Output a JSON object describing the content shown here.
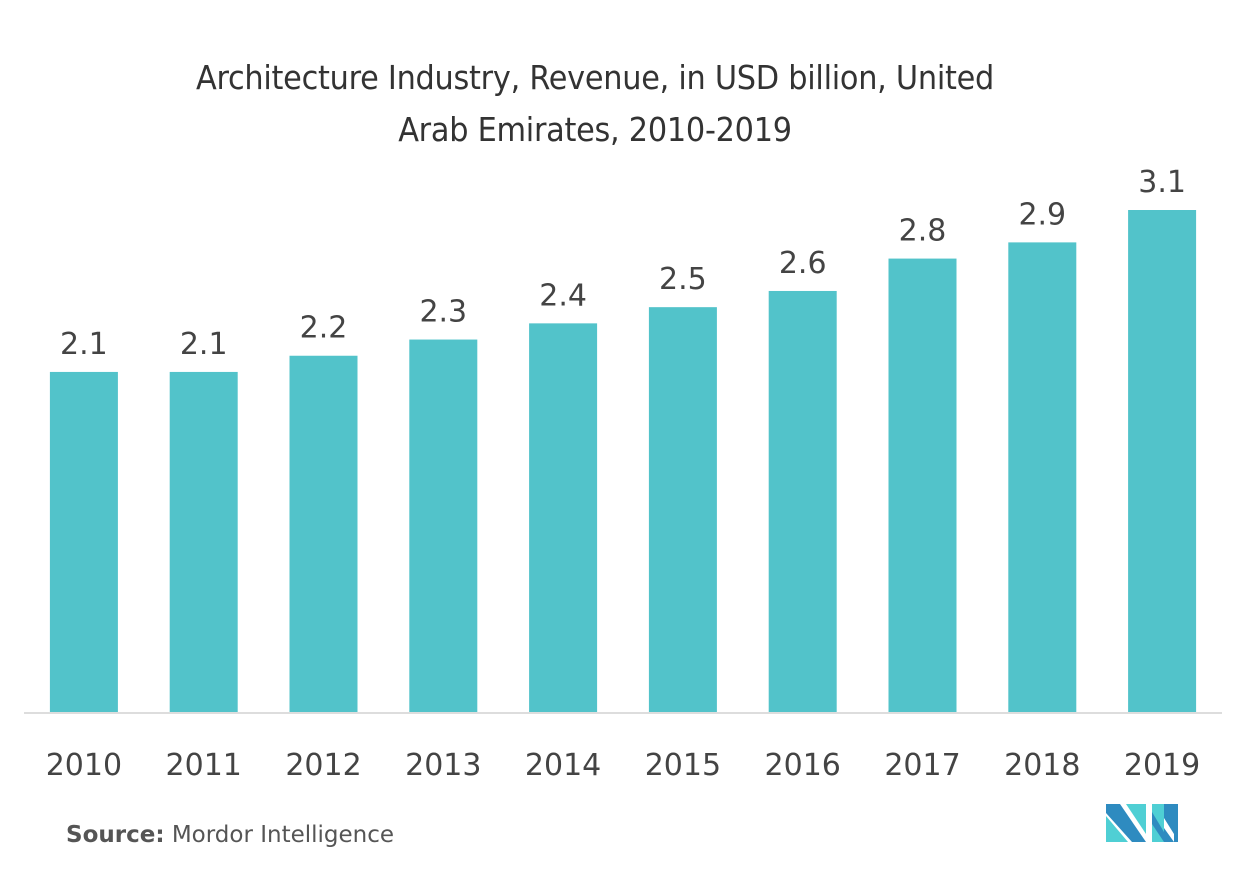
{
  "chart_data": {
    "type": "bar",
    "title": "Architecture Industry, Revenue, in USD billion, United Arab Emirates, 2010-2019",
    "title_lines": [
      "Architecture Industry, Revenue, in USD billion, United",
      "Arab Emirates, 2010-2019"
    ],
    "categories": [
      "2010",
      "2011",
      "2012",
      "2013",
      "2014",
      "2015",
      "2016",
      "2017",
      "2018",
      "2019"
    ],
    "values": [
      2.1,
      2.1,
      2.2,
      2.3,
      2.4,
      2.5,
      2.6,
      2.8,
      2.9,
      3.1
    ],
    "data_labels": [
      "2.1",
      "2.1",
      "2.2",
      "2.3",
      "2.4",
      "2.5",
      "2.6",
      "2.8",
      "2.9",
      "3.1"
    ],
    "xlabel": "",
    "ylabel": "",
    "ylim": [
      0,
      3.1
    ],
    "y_axis_visible": false,
    "grid": false,
    "legend": "none",
    "colors": {
      "bar": "#52C3CA",
      "text": "#444444",
      "axis": "#DDDDDD"
    }
  },
  "footer": {
    "source_label": "Source:",
    "source_value": " Mordor Intelligence",
    "logo_icon": "mordor-intelligence-logo"
  }
}
